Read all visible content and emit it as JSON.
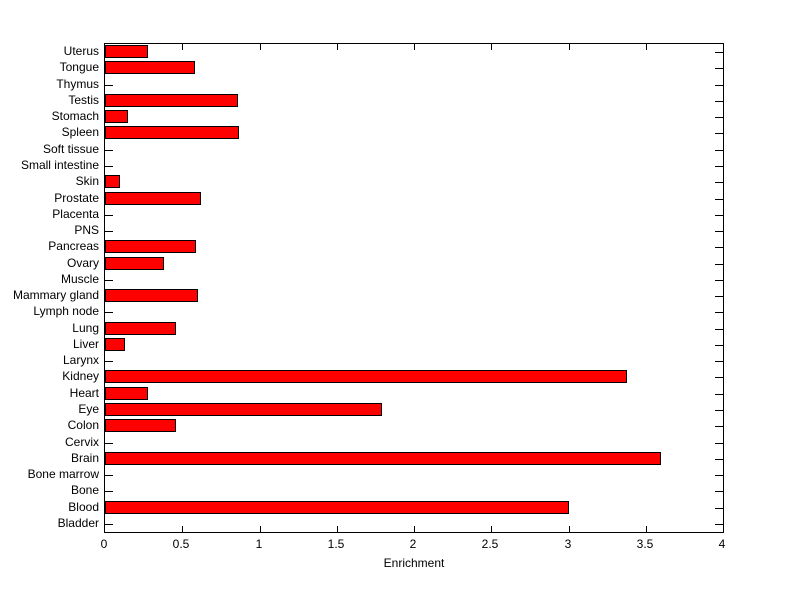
{
  "chart_data": {
    "type": "bar",
    "orientation": "horizontal",
    "title": "",
    "xlabel": "Enrichment",
    "ylabel": "",
    "xlim": [
      0,
      4
    ],
    "xticks": [
      0,
      0.5,
      1,
      1.5,
      2,
      2.5,
      3,
      3.5,
      4
    ],
    "xtick_labels": [
      "0",
      "0.5",
      "1",
      "1.5",
      "2",
      "2.5",
      "3",
      "3.5",
      "4"
    ],
    "grid": false,
    "legend": null,
    "bar_color": "#ff0000",
    "bar_edge_color": "#000000",
    "categories": [
      "Uterus",
      "Tongue",
      "Thymus",
      "Testis",
      "Stomach",
      "Spleen",
      "Soft tissue",
      "Small intestine",
      "Skin",
      "Prostate",
      "Placenta",
      "PNS",
      "Pancreas",
      "Ovary",
      "Muscle",
      "Mammary gland",
      "Lymph node",
      "Lung",
      "Liver",
      "Larynx",
      "Kidney",
      "Heart",
      "Eye",
      "Colon",
      "Cervix",
      "Brain",
      "Bone marrow",
      "Bone",
      "Blood",
      "Bladder"
    ],
    "values": [
      0.28,
      0.58,
      0,
      0.86,
      0.15,
      0.87,
      0,
      0,
      0.1,
      0.62,
      0,
      0,
      0.59,
      0.38,
      0,
      0.6,
      0,
      0.46,
      0.13,
      0,
      3.38,
      0.28,
      1.79,
      0.46,
      0,
      3.6,
      0,
      0,
      3.0,
      0
    ]
  }
}
